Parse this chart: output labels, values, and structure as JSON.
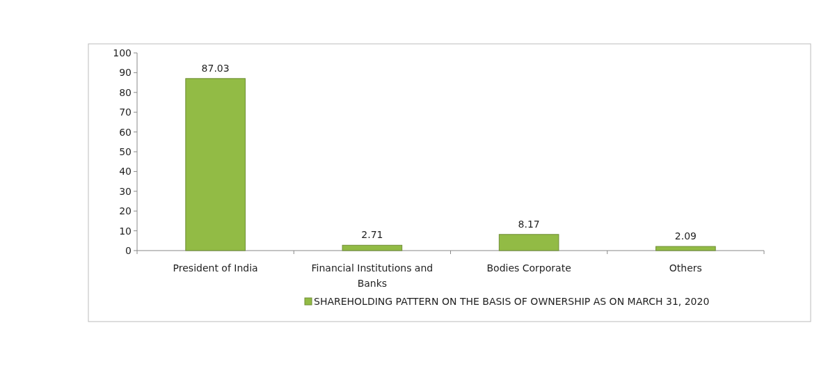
{
  "chart_data": {
    "type": "bar",
    "categories": [
      "President of India",
      "Financial Institutions and Banks",
      "Bodies Corporate",
      "Others"
    ],
    "series": [
      {
        "name": "SHAREHOLDING PATTERN ON THE BASIS OF OWNERSHIP AS ON MARCH 31, 2020",
        "color": "#92bb45",
        "values": [
          87.03,
          2.71,
          8.17,
          2.09
        ]
      }
    ],
    "ylim": [
      0,
      100
    ],
    "yticks": [
      0,
      10,
      20,
      30,
      40,
      50,
      60,
      70,
      80,
      90,
      100
    ],
    "data_labels": true,
    "legend": "bottom"
  }
}
